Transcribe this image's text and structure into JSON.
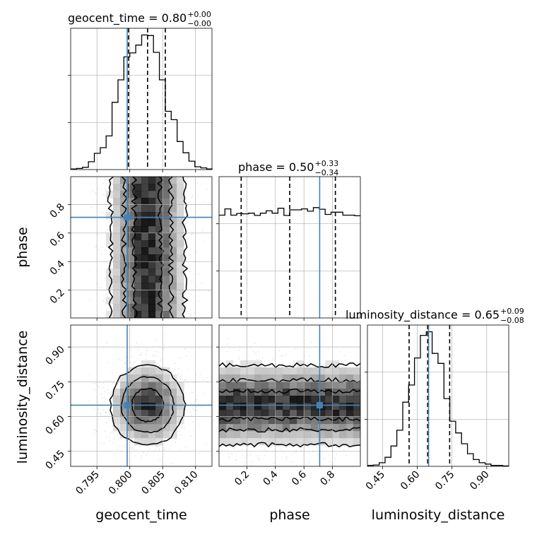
{
  "chart_data": {
    "type": "corner",
    "parameters": [
      {
        "name": "geocent_time",
        "range": [
          0.791,
          0.8125
        ],
        "ticks": [
          0.795,
          0.8,
          0.805,
          0.81
        ],
        "tick_labels": [
          "0.795",
          "0.800",
          "0.805",
          "0.810"
        ],
        "quantiles": [
          0.7998,
          0.8027,
          0.8054
        ],
        "truth": 0.7996
      },
      {
        "name": "phase",
        "range": [
          0.005,
          0.995
        ],
        "ticks": [
          0.2,
          0.4,
          0.6,
          0.8
        ],
        "tick_labels": [
          "0.2",
          "0.4",
          "0.6",
          "0.8"
        ],
        "quantiles": [
          0.16,
          0.5,
          0.82
        ],
        "truth": 0.71
      },
      {
        "name": "luminosity_distance",
        "range": [
          0.385,
          0.995
        ],
        "ticks": [
          0.45,
          0.6,
          0.75,
          0.9
        ],
        "tick_labels": [
          "0.45",
          "0.60",
          "0.75",
          "0.90"
        ],
        "quantiles": [
          0.565,
          0.645,
          0.74
        ],
        "truth": 0.649
      }
    ],
    "titles": [
      {
        "param": "geocent_time",
        "label": "geocent_time = 0.80",
        "plus": "+0.00",
        "minus": "−0.00"
      },
      {
        "param": "phase",
        "label": "phase = 0.50",
        "plus": "+0.33",
        "minus": "−0.34"
      },
      {
        "param": "luminosity_distance",
        "label": "luminosity_distance = 0.65",
        "plus": "+0.09",
        "minus": "−0.08"
      }
    ],
    "marginals": {
      "geocent_time": {
        "x_start": 0.791,
        "bin_width": 0.0009,
        "counts": [
          1,
          2,
          4,
          14,
          29,
          39,
          60,
          120,
          160,
          201,
          208,
          222,
          240,
          239,
          209,
          160,
          104,
          89,
          50,
          30,
          15,
          5,
          3,
          1
        ]
      },
      "phase": {
        "x_start": 0.005,
        "bin_width": 0.0413,
        "counts": [
          312,
          331,
          312,
          317,
          316,
          318,
          311,
          318,
          325,
          318,
          333,
          311,
          328,
          328,
          331,
          324,
          335,
          330,
          314,
          321,
          321,
          312,
          312,
          310
        ]
      },
      "luminosity_distance": {
        "x_start": 0.385,
        "bin_width": 0.0254,
        "counts": [
          2,
          3,
          8,
          20,
          45,
          80,
          142,
          180,
          240,
          290,
          298,
          250,
          228,
          150,
          100,
          74,
          50,
          28,
          15,
          8,
          5,
          2,
          2,
          1
        ]
      }
    },
    "colors": {
      "truth": "#4682b4",
      "hist": "#000000",
      "grid": "#b0b0b0",
      "points": "#bfbfbf"
    },
    "grid": true
  }
}
